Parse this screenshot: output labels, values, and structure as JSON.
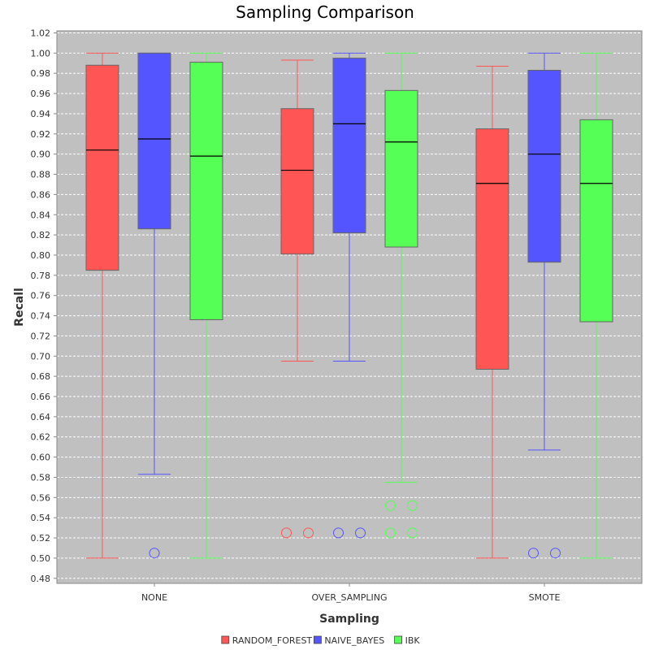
{
  "chart_data": {
    "type": "box",
    "title": "Sampling Comparison",
    "xlabel": "Sampling",
    "ylabel": "Recall",
    "ylim": [
      0.475,
      1.022
    ],
    "yticks": [
      0.48,
      0.5,
      0.52,
      0.54,
      0.56,
      0.58,
      0.6,
      0.62,
      0.64,
      0.66,
      0.68,
      0.7,
      0.72,
      0.74,
      0.76,
      0.78,
      0.8,
      0.82,
      0.84,
      0.86,
      0.88,
      0.9,
      0.92,
      0.94,
      0.96,
      0.98,
      1.0,
      1.02
    ],
    "grid": true,
    "legend_position": "bottom",
    "categories": [
      "NONE",
      "OVER_SAMPLING",
      "SMOTE"
    ],
    "series": [
      {
        "name": "RANDOM_FOREST",
        "color": "#ff5555",
        "boxes": [
          {
            "whisker_low": 0.5,
            "q1": 0.785,
            "median": 0.904,
            "q3": 0.988,
            "whisker_high": 1.0,
            "outliers": []
          },
          {
            "whisker_low": 0.695,
            "q1": 0.801,
            "median": 0.884,
            "q3": 0.945,
            "whisker_high": 0.993,
            "outliers": [
              0.525,
              0.525
            ]
          },
          {
            "whisker_low": 0.5,
            "q1": 0.687,
            "median": 0.871,
            "q3": 0.925,
            "whisker_high": 0.987,
            "outliers": []
          }
        ]
      },
      {
        "name": "NAIVE_BAYES",
        "color": "#5555ff",
        "boxes": [
          {
            "whisker_low": 0.583,
            "q1": 0.826,
            "median": 0.915,
            "q3": 1.0,
            "whisker_high": 1.0,
            "outliers": [
              0.505
            ]
          },
          {
            "whisker_low": 0.695,
            "q1": 0.822,
            "median": 0.93,
            "q3": 0.995,
            "whisker_high": 1.0,
            "outliers": [
              0.525,
              0.525
            ]
          },
          {
            "whisker_low": 0.607,
            "q1": 0.793,
            "median": 0.9,
            "q3": 0.983,
            "whisker_high": 1.0,
            "outliers": [
              0.505,
              0.505
            ]
          }
        ]
      },
      {
        "name": "IBK",
        "color": "#55ff55",
        "boxes": [
          {
            "whisker_low": 0.5,
            "q1": 0.736,
            "median": 0.898,
            "q3": 0.991,
            "whisker_high": 1.0,
            "outliers": []
          },
          {
            "whisker_low": 0.575,
            "q1": 0.808,
            "median": 0.912,
            "q3": 0.963,
            "whisker_high": 1.0,
            "outliers": [
              0.552,
              0.552,
              0.525,
              0.525
            ]
          },
          {
            "whisker_low": 0.5,
            "q1": 0.734,
            "median": 0.871,
            "q3": 0.934,
            "whisker_high": 1.0,
            "outliers": []
          }
        ]
      }
    ]
  }
}
